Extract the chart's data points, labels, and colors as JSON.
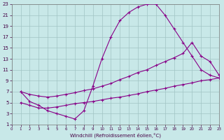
{
  "xlabel": "Windchill (Refroidissement éolien,°C)",
  "bg_color": "#c8e8e8",
  "grid_color": "#a0c4c4",
  "line_color": "#880088",
  "xmin": 0,
  "xmax": 23,
  "ymin": 1,
  "ymax": 23,
  "curve1_x": [
    1,
    2,
    3,
    4,
    5,
    6,
    7,
    8,
    9,
    10,
    11,
    12,
    13,
    14,
    15,
    16,
    17,
    18,
    19,
    20,
    21,
    22,
    23
  ],
  "curve1_y": [
    7,
    5.2,
    4.5,
    3.5,
    3.0,
    2.5,
    2.0,
    3.5,
    8.0,
    13.0,
    17.0,
    20.0,
    21.5,
    22.5,
    23.0,
    23.0,
    21.0,
    18.5,
    16.0,
    13.5,
    11.0,
    10.0,
    9.5
  ],
  "curve2_x": [
    1,
    2,
    3,
    4,
    5,
    6,
    7,
    8,
    9,
    10,
    11,
    12,
    13,
    14,
    15,
    16,
    17,
    18,
    19,
    20,
    21,
    22,
    23
  ],
  "curve2_y": [
    7.0,
    6.5,
    6.2,
    6.0,
    6.2,
    6.5,
    6.8,
    7.2,
    7.5,
    8.0,
    8.5,
    9.2,
    9.8,
    10.5,
    11.0,
    11.8,
    12.5,
    13.2,
    14.0,
    16.0,
    13.5,
    12.5,
    10.0
  ],
  "curve3_x": [
    1,
    2,
    3,
    4,
    5,
    6,
    7,
    8,
    9,
    10,
    11,
    12,
    13,
    14,
    15,
    16,
    17,
    18,
    19,
    20,
    21,
    22,
    23
  ],
  "curve3_y": [
    5.0,
    4.5,
    4.0,
    4.0,
    4.2,
    4.5,
    4.8,
    5.0,
    5.2,
    5.5,
    5.8,
    6.0,
    6.3,
    6.6,
    7.0,
    7.3,
    7.6,
    8.0,
    8.3,
    8.6,
    9.0,
    9.2,
    9.5
  ],
  "yticks": [
    1,
    3,
    5,
    7,
    9,
    11,
    13,
    15,
    17,
    19,
    21,
    23
  ],
  "xticks": [
    0,
    1,
    2,
    3,
    4,
    5,
    6,
    7,
    8,
    9,
    10,
    11,
    12,
    13,
    14,
    15,
    16,
    17,
    18,
    19,
    20,
    21,
    22,
    23
  ]
}
